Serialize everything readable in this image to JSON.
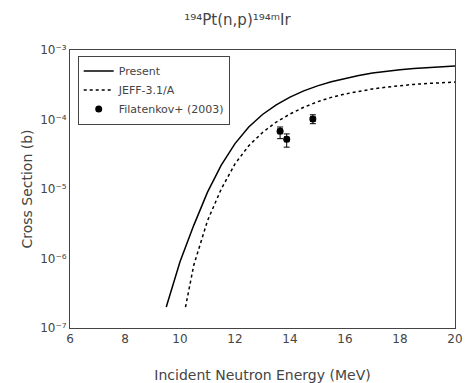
{
  "chart_data": {
    "type": "line",
    "title": "¹⁹⁴Pt(n,p)¹⁹⁴ᵐIr",
    "xlabel": "Incident Neutron Energy (MeV)",
    "ylabel": "Cross Section (b)",
    "log": "y",
    "xlim": [
      6,
      20
    ],
    "xticks": [
      6,
      8,
      10,
      12,
      14,
      16,
      18,
      20
    ],
    "ylim": [
      1e-07,
      0.001
    ],
    "yticks": [
      {
        "value": 1e-07,
        "label": "10⁻⁷"
      },
      {
        "value": 1e-06,
        "label": "10⁻⁶"
      },
      {
        "value": 1e-05,
        "label": "10⁻⁵"
      },
      {
        "value": 0.0001,
        "label": "10⁻⁴"
      },
      {
        "value": 0.001,
        "label": "10⁻³"
      }
    ],
    "grid": false,
    "legend": "upper left",
    "series": [
      {
        "name": "Present",
        "type": "line",
        "line_style": "solid",
        "color": "black",
        "x": [
          9.5,
          9.8,
          10.0,
          10.5,
          11.0,
          11.5,
          12.0,
          12.5,
          13.0,
          13.5,
          14.0,
          14.5,
          15.0,
          15.5,
          16.0,
          16.5,
          17.0,
          17.5,
          18.0,
          18.5,
          19.0,
          19.5,
          20.0
        ],
        "values": [
          2e-07,
          5e-07,
          9e-07,
          3e-06,
          9e-06,
          2.2e-05,
          4.5e-05,
          7.8e-05,
          0.000118,
          0.000162,
          0.00021,
          0.000258,
          0.000305,
          0.00035,
          0.000392,
          0.00043,
          0.000465,
          0.000495,
          0.00052,
          0.000542,
          0.00056,
          0.000575,
          0.000588
        ]
      },
      {
        "name": "JEFF-3.1/A",
        "type": "line",
        "line_style": "dotted",
        "color": "black",
        "x": [
          10.2,
          10.5,
          11.0,
          11.5,
          12.0,
          12.5,
          13.0,
          13.5,
          14.0,
          14.5,
          15.0,
          15.5,
          16.0,
          16.5,
          17.0,
          17.5,
          18.0,
          18.5,
          19.0,
          19.5,
          20.0
        ],
        "values": [
          2e-07,
          8e-07,
          3.5e-06,
          1e-05,
          2.3e-05,
          4.2e-05,
          6.5e-05,
          9.2e-05,
          0.00012,
          0.00015,
          0.00018,
          0.000208,
          0.000233,
          0.000255,
          0.000275,
          0.000292,
          0.000307,
          0.00032,
          0.00033,
          0.000338,
          0.000345
        ]
      },
      {
        "name": "Filatenkov+ (2003)",
        "type": "scatter",
        "marker": "circle",
        "color": "black",
        "x": [
          13.64,
          13.88,
          14.83
        ],
        "values": [
          6.8e-05,
          5.2e-05,
          0.000102
        ],
        "xerr": [
          0.08,
          0.08,
          0.08
        ],
        "yerr_low": [
          1.5e-05,
          1.2e-05,
          1.5e-05
        ],
        "yerr_high": [
          1e-05,
          1e-05,
          1.5e-05
        ]
      }
    ]
  }
}
